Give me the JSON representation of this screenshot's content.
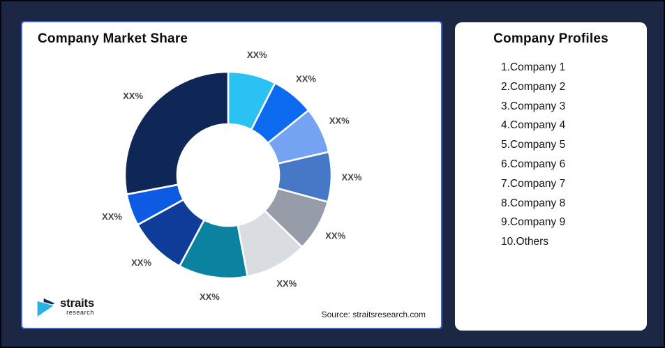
{
  "left_card": {
    "title": "Company Market Share",
    "source": "Source: straitsresearch.com"
  },
  "logo": {
    "name": "straits",
    "sub": "research",
    "mark_navy": "#152A4E",
    "mark_cyan": "#2BB1E4"
  },
  "right_card": {
    "title": "Company Profiles",
    "items": [
      "1.Company 1",
      "2.Company 2",
      "3.Company 3",
      "4.Company 4",
      "5.Company 5",
      "6.Company 6",
      "7.Company 7",
      "8.Company 8",
      "9.Company 9",
      "10.Others"
    ]
  },
  "chart_data": {
    "type": "pie",
    "variant": "donut",
    "title": "Company Market Share",
    "start_angle_deg": 0,
    "direction": "clockwise",
    "inner_radius_ratio": 0.49,
    "labels": [
      "XX%",
      "XX%",
      "XX%",
      "XX%",
      "XX%",
      "XX%",
      "XX%",
      "XX%",
      "XX%",
      "XX%"
    ],
    "values": [
      7.5,
      6.7,
      7.2,
      7.8,
      8.1,
      9.7,
      10.8,
      9.2,
      5.0,
      28.0
    ],
    "colors": [
      "#29C2F2",
      "#0B6AEF",
      "#74A3F1",
      "#4678C8",
      "#969DA9",
      "#D9DCE0",
      "#0B82A0",
      "#103C99",
      "#0C5BE2",
      "#0E2756"
    ],
    "note": "values are estimated percent of circle; displayed data labels read XX%"
  },
  "theme": {
    "page_bg": "#1C2843",
    "card_bg": "#FFFFFF",
    "card_border": "#3E63D6",
    "label_color": "#3F444C"
  }
}
